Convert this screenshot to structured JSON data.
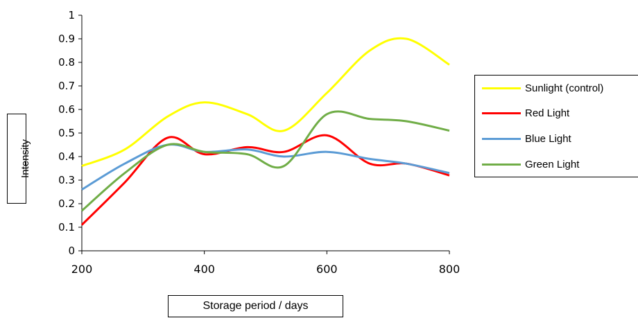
{
  "chart_data": {
    "type": "line",
    "xlabel": "Storage period / days",
    "ylabel": "Intensity",
    "xlim": [
      200,
      800
    ],
    "ylim": [
      0,
      1
    ],
    "xticks": [
      "200",
      "400",
      "600",
      "800"
    ],
    "yticks": [
      "0",
      "0.1",
      "0.2",
      "0.3",
      "0.4",
      "0.5",
      "0.6",
      "0.7",
      "0.8",
      "0.9",
      "1"
    ],
    "grid": false,
    "legend_position": "right",
    "series": [
      {
        "name": "Sunlight (control)",
        "color": "#FFFF00",
        "x": [
          200,
          270,
          340,
          400,
          470,
          530,
          600,
          670,
          730,
          800
        ],
        "y": [
          0.36,
          0.43,
          0.57,
          0.63,
          0.58,
          0.51,
          0.67,
          0.85,
          0.9,
          0.79
        ]
      },
      {
        "name": "Red Light",
        "color": "#FF0000",
        "x": [
          200,
          270,
          340,
          400,
          470,
          530,
          600,
          670,
          730,
          800
        ],
        "y": [
          0.11,
          0.29,
          0.48,
          0.41,
          0.44,
          0.42,
          0.49,
          0.37,
          0.37,
          0.32
        ]
      },
      {
        "name": "Blue Light",
        "color": "#5B9BD5",
        "x": [
          200,
          270,
          340,
          400,
          470,
          530,
          600,
          670,
          730,
          800
        ],
        "y": [
          0.26,
          0.37,
          0.45,
          0.42,
          0.43,
          0.4,
          0.42,
          0.39,
          0.37,
          0.33
        ]
      },
      {
        "name": "Green Light",
        "color": "#70AD47",
        "x": [
          200,
          270,
          340,
          400,
          470,
          530,
          600,
          670,
          730,
          800
        ],
        "y": [
          0.17,
          0.33,
          0.45,
          0.42,
          0.41,
          0.36,
          0.58,
          0.56,
          0.55,
          0.51
        ]
      }
    ]
  }
}
